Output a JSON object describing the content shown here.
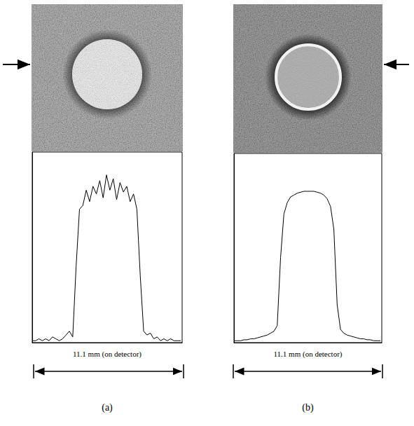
{
  "chart_data": [
    {
      "type": "line",
      "panel_label": "(a)",
      "annotation": "11.1 mm (on detector)",
      "color": "#000000",
      "tick_labels": false,
      "grid": false,
      "xlim": [
        0,
        11.1
      ],
      "ylim": [
        0,
        100
      ],
      "x": [
        0,
        0.25,
        0.5,
        0.75,
        1.0,
        1.25,
        1.5,
        1.75,
        2.0,
        2.25,
        2.5,
        2.75,
        3.0,
        3.25,
        3.5,
        3.75,
        4.0,
        4.25,
        4.5,
        4.75,
        5.0,
        5.25,
        5.5,
        5.75,
        6.0,
        6.25,
        6.5,
        6.75,
        7.0,
        7.25,
        7.5,
        7.75,
        8.0,
        8.25,
        8.5,
        8.75,
        9.0,
        9.25,
        9.5,
        9.75,
        10.0,
        10.25,
        10.5,
        10.75,
        11.0
      ],
      "values": [
        1,
        1,
        2,
        1,
        2,
        1,
        3,
        2,
        1,
        2,
        4,
        6,
        3,
        40,
        70,
        72,
        80,
        74,
        82,
        78,
        85,
        76,
        88,
        80,
        86,
        75,
        84,
        79,
        82,
        74,
        78,
        70,
        35,
        6,
        4,
        5,
        2,
        3,
        1,
        2,
        1,
        2,
        1,
        1,
        1
      ]
    },
    {
      "type": "line",
      "panel_label": "(b)",
      "annotation": "11.1 mm (on detector)",
      "color": "#000000",
      "tick_labels": false,
      "grid": false,
      "xlim": [
        0,
        11.1
      ],
      "ylim": [
        0,
        100
      ],
      "x": [
        0,
        0.25,
        0.5,
        0.75,
        1.0,
        1.25,
        1.5,
        1.75,
        2.0,
        2.25,
        2.5,
        2.75,
        3.0,
        3.25,
        3.5,
        3.75,
        4.0,
        4.25,
        4.5,
        4.75,
        5.0,
        5.25,
        5.5,
        5.75,
        6.0,
        6.25,
        6.5,
        6.75,
        7.0,
        7.25,
        7.5,
        7.75,
        8.0,
        8.25,
        8.5,
        8.75,
        9.0,
        9.25,
        9.5,
        9.75,
        10.0,
        10.25,
        10.5,
        10.75,
        11.0
      ],
      "values": [
        1,
        1,
        1,
        1.5,
        1.5,
        2,
        2,
        2.5,
        3,
        3.5,
        4,
        5,
        6,
        9,
        45,
        68,
        74,
        77,
        78,
        79,
        79.5,
        80,
        80,
        80,
        80,
        79.5,
        79,
        78,
        76,
        72,
        60,
        20,
        7,
        5,
        4,
        3.5,
        3,
        2.5,
        2,
        2,
        1.5,
        1.5,
        1,
        1,
        1
      ]
    }
  ]
}
